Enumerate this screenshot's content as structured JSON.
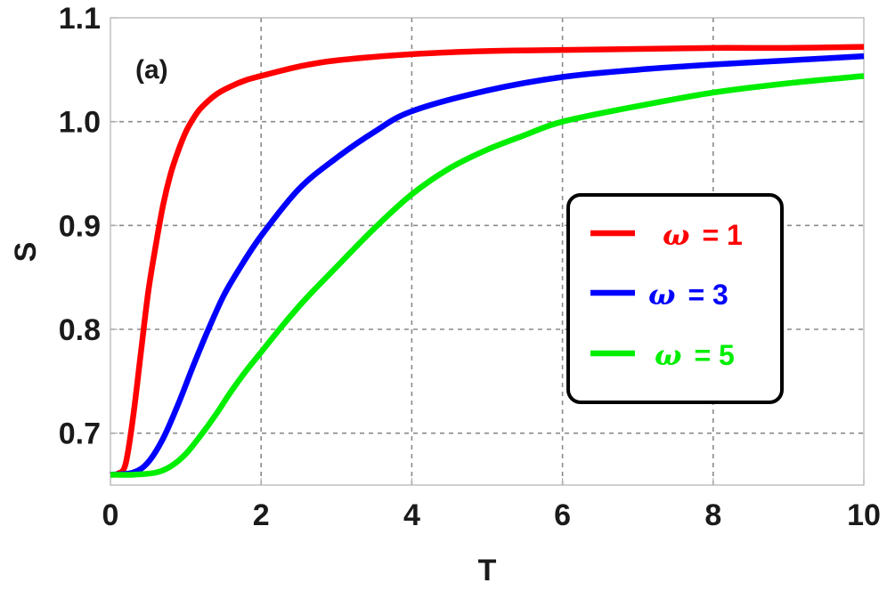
{
  "chart_data": {
    "type": "line",
    "panel_label": "(a)",
    "xlabel": "T",
    "ylabel": "S",
    "xlim": [
      0,
      10
    ],
    "ylim": [
      0.65,
      1.1
    ],
    "x_ticks": [
      "0",
      "2",
      "4",
      "6",
      "8",
      "10"
    ],
    "y_ticks": [
      "0.7",
      "0.8",
      "0.9",
      "1.0",
      "1.1"
    ],
    "x_tick_values": [
      0,
      2,
      4,
      6,
      8,
      10
    ],
    "y_tick_values": [
      0.7,
      0.8,
      0.9,
      1.0,
      1.1
    ],
    "grid": true,
    "legend_position": "right",
    "series": [
      {
        "name": "ω = 1",
        "legend_symbol": "ω",
        "legend_value": "= 1",
        "color": "#ff0000",
        "x": [
          0,
          0.1,
          0.2,
          0.3,
          0.4,
          0.5,
          0.6,
          0.7,
          0.8,
          0.9,
          1.0,
          1.1,
          1.2,
          1.4,
          1.6,
          1.8,
          2.0,
          2.5,
          3.0,
          4.0,
          5.0,
          6.0,
          7.0,
          8.0,
          9.0,
          10.0
        ],
        "y": [
          0.66,
          0.661,
          0.67,
          0.715,
          0.775,
          0.835,
          0.88,
          0.92,
          0.95,
          0.972,
          0.99,
          1.003,
          1.013,
          1.026,
          1.034,
          1.04,
          1.044,
          1.053,
          1.059,
          1.065,
          1.068,
          1.069,
          1.07,
          1.071,
          1.071,
          1.072
        ]
      },
      {
        "name": "ω = 3",
        "legend_symbol": "ω",
        "legend_value": "= 3",
        "color": "#0000ff",
        "x": [
          0,
          0.3,
          0.5,
          0.7,
          0.9,
          1.1,
          1.3,
          1.5,
          1.7,
          2.0,
          2.5,
          3.0,
          3.5,
          4.0,
          5.0,
          6.0,
          7.0,
          8.0,
          9.0,
          10.0
        ],
        "y": [
          0.66,
          0.662,
          0.672,
          0.695,
          0.728,
          0.765,
          0.8,
          0.832,
          0.857,
          0.89,
          0.935,
          0.965,
          0.99,
          1.01,
          1.03,
          1.043,
          1.05,
          1.055,
          1.059,
          1.063
        ]
      },
      {
        "name": "ω = 5",
        "legend_symbol": "ω",
        "legend_value": "= 5",
        "color": "#00ee00",
        "x": [
          0,
          0.3,
          0.6,
          0.8,
          1.0,
          1.2,
          1.4,
          1.6,
          1.8,
          2.0,
          2.3,
          2.6,
          3.0,
          3.5,
          4.0,
          4.5,
          5.0,
          5.5,
          6.0,
          7.0,
          8.0,
          9.0,
          10.0
        ],
        "y": [
          0.66,
          0.66,
          0.662,
          0.668,
          0.68,
          0.698,
          0.718,
          0.74,
          0.76,
          0.778,
          0.805,
          0.83,
          0.86,
          0.897,
          0.93,
          0.955,
          0.973,
          0.987,
          1.0,
          1.015,
          1.028,
          1.037,
          1.044
        ]
      }
    ]
  }
}
